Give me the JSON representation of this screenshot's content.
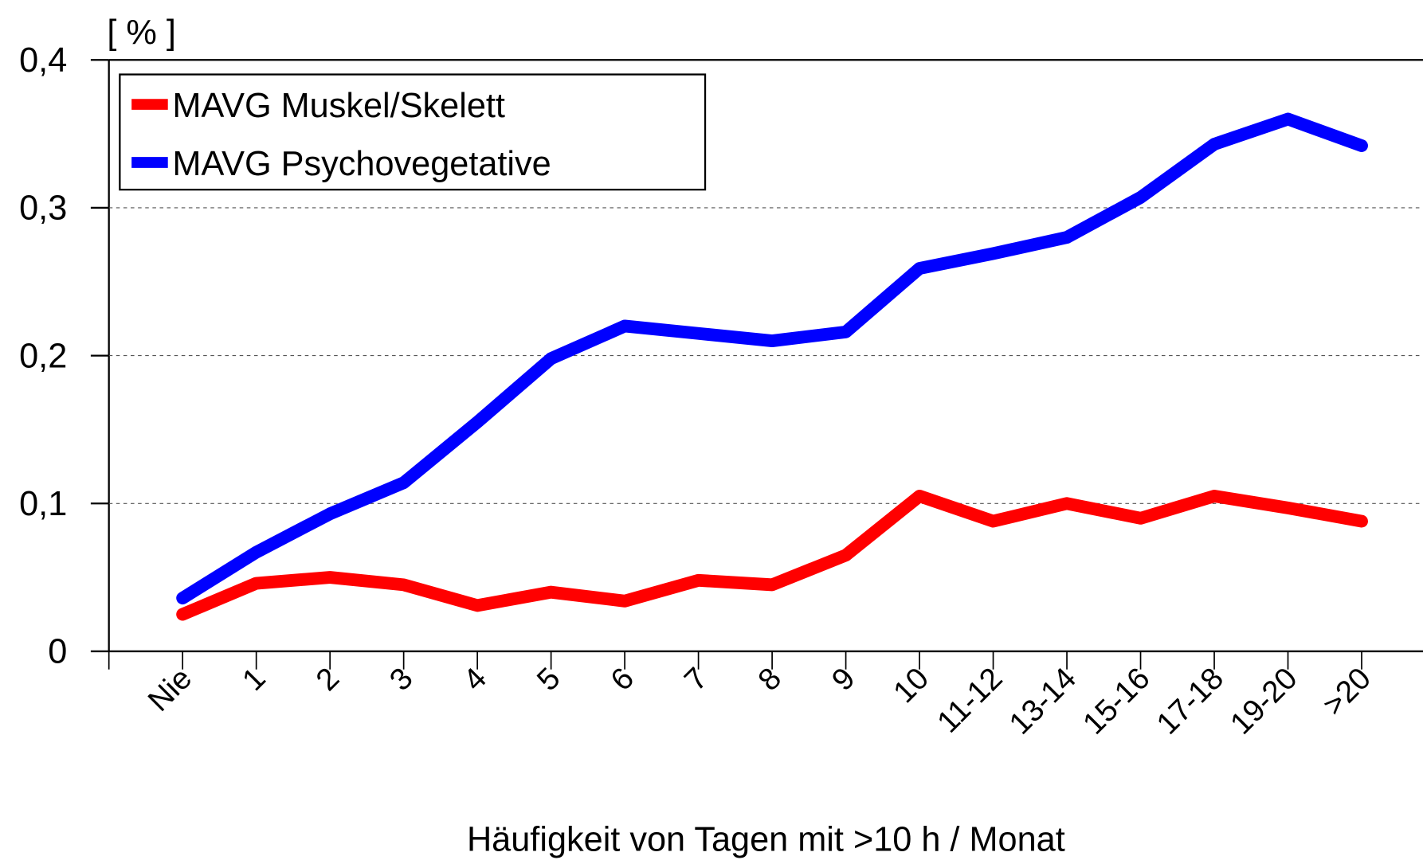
{
  "chart_data": {
    "type": "line",
    "ylabel": "[ % ]",
    "xlabel": "Häufigkeit von Tagen mit >10 h / Monat",
    "categories": [
      "Nie",
      "1",
      "2",
      "3",
      "4",
      "5",
      "6",
      "7",
      "8",
      "9",
      "10",
      "11-12",
      "13-14",
      "15-16",
      "17-18",
      "19-20",
      ">20"
    ],
    "series": [
      {
        "name": "MAVG Muskel/Skelett",
        "color": "#ff0000",
        "values": [
          0.025,
          0.046,
          0.05,
          0.045,
          0.031,
          0.04,
          0.034,
          0.048,
          0.045,
          0.065,
          0.105,
          0.088,
          0.1,
          0.09,
          0.105,
          0.097,
          0.088
        ]
      },
      {
        "name": "MAVG Psychovegetative",
        "color": "#0000ff",
        "values": [
          0.036,
          0.067,
          0.093,
          0.114,
          0.155,
          0.198,
          0.22,
          0.215,
          0.21,
          0.216,
          0.259,
          0.269,
          0.28,
          0.307,
          0.343,
          0.36,
          0.342
        ]
      }
    ],
    "ylim": [
      0,
      0.4
    ],
    "yticks": [
      0,
      {
        "value": 0.1,
        "label": "0,1"
      },
      {
        "value": 0.2,
        "label": "0,2"
      },
      {
        "value": 0.3,
        "label": "0,3"
      },
      {
        "value": 0.4,
        "label": "0,4"
      }
    ],
    "grid": true,
    "legend": "upper left"
  }
}
